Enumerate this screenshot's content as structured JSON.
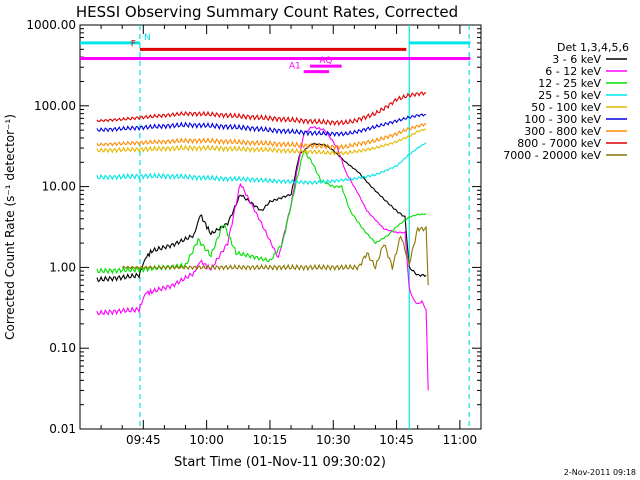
{
  "chart_data": {
    "type": "line",
    "title": "HESSI Observing Summary Count Rates, Corrected",
    "xlabel": "Start Time (01-Nov-11 09:30:02)",
    "ylabel": "Corrected Count Rate (s⁻¹ detector⁻¹)",
    "yscale": "log",
    "ylim": [
      0.01,
      1000
    ],
    "xlim_minutes": [
      0,
      95
    ],
    "x_tick_minutes": [
      15,
      30,
      45,
      60,
      75,
      90
    ],
    "x_tick_labels": [
      "09:45",
      "10:00",
      "10:15",
      "10:30",
      "10:45",
      "11:00"
    ],
    "y_ticks": [
      1000,
      100,
      10,
      1,
      0.1,
      0.01
    ],
    "y_tick_labels": [
      "1000.00",
      "100.00",
      "10.00",
      "1.00",
      "0.10",
      "0.01"
    ],
    "legend_title": "Det 1,3,4,5,6",
    "legend_position": "right",
    "footer": "2-Nov-2011 09:18",
    "flag_bars": [
      {
        "label": "N",
        "color": "#00e5e5",
        "y": 600,
        "segments": [
          [
            0,
            14.2
          ],
          [
            77.9,
            92.5
          ]
        ]
      },
      {
        "label": "F",
        "color": "#e00000",
        "y": 500,
        "segments": [
          [
            14.2,
            77.3
          ]
        ]
      },
      {
        "label": "",
        "color": "#ff00ff",
        "y": 385,
        "segments": [
          [
            0,
            92.5
          ]
        ]
      },
      {
        "label": "AQ",
        "color": "#ff00ff",
        "y": 310,
        "segments": [
          [
            54.5,
            62.0
          ]
        ]
      },
      {
        "label": "A1",
        "color": "#ff00ff",
        "y": 265,
        "segments": [
          [
            53.0,
            59.0
          ]
        ]
      }
    ],
    "vertical_lines": [
      {
        "x": 14.2,
        "color": "#00e5e5",
        "style": "dashed"
      },
      {
        "x": 78.0,
        "color": "#00e5e5",
        "style": "solid"
      },
      {
        "x": 92.2,
        "color": "#00e5e5",
        "style": "dashed"
      }
    ],
    "series": [
      {
        "name": "3 - 6 keV",
        "color": "#000000",
        "x": [
          4,
          10,
          14,
          15.5,
          17,
          22,
          27,
          28.5,
          31,
          35,
          38,
          43,
          45,
          50,
          52,
          55,
          58,
          60,
          63,
          66,
          69,
          72,
          75,
          77,
          78,
          80,
          82
        ],
        "y": [
          0.7,
          0.75,
          0.8,
          1.3,
          1.6,
          1.9,
          2.5,
          4.5,
          2.6,
          3.5,
          8.0,
          5.0,
          6.5,
          8.0,
          25,
          34,
          33,
          28,
          20,
          15,
          10,
          7,
          5,
          4.2,
          1.0,
          0.8,
          0.8
        ]
      },
      {
        "name": "6 - 12 keV",
        "color": "#ff00ff",
        "x": [
          4,
          10,
          14,
          15.5,
          17,
          22,
          27,
          28.5,
          31,
          35,
          38,
          43,
          47,
          50,
          53,
          55,
          58,
          61,
          63,
          66,
          68,
          72,
          75,
          77,
          78,
          79,
          80,
          81,
          82,
          82.5
        ],
        "y": [
          0.27,
          0.29,
          0.3,
          0.48,
          0.5,
          0.6,
          0.85,
          1.2,
          0.95,
          2.0,
          11,
          3.5,
          1.3,
          6.0,
          45,
          55,
          50,
          30,
          15,
          8,
          5,
          3,
          2.7,
          2.7,
          0.55,
          0.4,
          0.35,
          0.38,
          0.3,
          0.03
        ]
      },
      {
        "name": "12 - 25 keV",
        "color": "#00e000",
        "x": [
          4,
          10,
          15,
          20,
          25,
          28,
          31,
          34,
          37,
          40,
          45,
          48,
          51,
          53,
          55,
          57,
          60,
          62,
          64,
          67,
          70,
          73,
          75,
          78,
          80,
          82
        ],
        "y": [
          0.9,
          0.92,
          0.95,
          1.0,
          1.05,
          2.2,
          1.4,
          3.5,
          1.5,
          1.4,
          1.2,
          2.0,
          10,
          28,
          20,
          12,
          10,
          10,
          5,
          3,
          2.0,
          2.5,
          3.2,
          4.2,
          4.5,
          4.6
        ]
      },
      {
        "name": "25 - 50 keV",
        "color": "#00e5e5",
        "x": [
          4,
          10,
          15,
          20,
          25,
          30,
          35,
          40,
          45,
          50,
          55,
          58,
          62,
          65,
          70,
          75,
          78,
          80,
          82
        ],
        "y": [
          13,
          13.2,
          13.5,
          13.5,
          13.2,
          12.8,
          12.5,
          12.3,
          11.8,
          11.5,
          11.2,
          11.5,
          12,
          12.5,
          14,
          18,
          25,
          30,
          35
        ]
      },
      {
        "name": "50 - 100 keV",
        "color": "#e6b800",
        "x": [
          4,
          10,
          15,
          20,
          25,
          30,
          35,
          40,
          45,
          50,
          55,
          60,
          63,
          65,
          70,
          75,
          78,
          80,
          82
        ],
        "y": [
          28,
          28.5,
          29,
          29.5,
          30,
          30,
          29.5,
          29,
          28.5,
          27.5,
          27,
          26,
          26,
          27,
          30,
          36,
          42,
          48,
          52
        ]
      },
      {
        "name": "100 - 300 keV",
        "color": "#0000e0",
        "x": [
          4,
          10,
          15,
          20,
          25,
          30,
          35,
          40,
          45,
          50,
          55,
          60,
          63,
          65,
          70,
          75,
          78,
          80,
          82
        ],
        "y": [
          50,
          52,
          54,
          56,
          58,
          57,
          55,
          53,
          50,
          48,
          46,
          45,
          45,
          47,
          55,
          65,
          72,
          76,
          78
        ]
      },
      {
        "name": "300 - 800 keV",
        "color": "#ff8c00",
        "x": [
          4,
          10,
          15,
          20,
          25,
          30,
          35,
          40,
          45,
          50,
          55,
          60,
          63,
          65,
          70,
          75,
          78,
          80,
          82
        ],
        "y": [
          33,
          34,
          35,
          36,
          37,
          37,
          36,
          35,
          34,
          33,
          32,
          31,
          31,
          33,
          37,
          45,
          52,
          56,
          60
        ]
      },
      {
        "name": "800 - 7000 keV",
        "color": "#e00000",
        "x": [
          4,
          10,
          15,
          20,
          25,
          30,
          35,
          40,
          45,
          50,
          55,
          60,
          63,
          65,
          70,
          73,
          75,
          78,
          80,
          82
        ],
        "y": [
          65,
          68,
          72,
          76,
          80,
          79,
          76,
          73,
          70,
          67,
          64,
          62,
          62,
          65,
          80,
          100,
          120,
          135,
          140,
          145
        ]
      },
      {
        "name": "7000 - 20000 keV",
        "color": "#8b7500",
        "x": [
          10,
          20,
          30,
          40,
          50,
          55,
          60,
          63,
          66,
          68,
          70,
          72,
          74,
          76,
          78,
          80,
          82,
          82.5
        ],
        "y": [
          1.0,
          1.0,
          1.0,
          1.0,
          1.0,
          1.0,
          1.0,
          1.0,
          1.0,
          1.5,
          1.0,
          2.0,
          1.0,
          2.5,
          1.1,
          3.0,
          3.0,
          0.6
        ]
      }
    ]
  }
}
